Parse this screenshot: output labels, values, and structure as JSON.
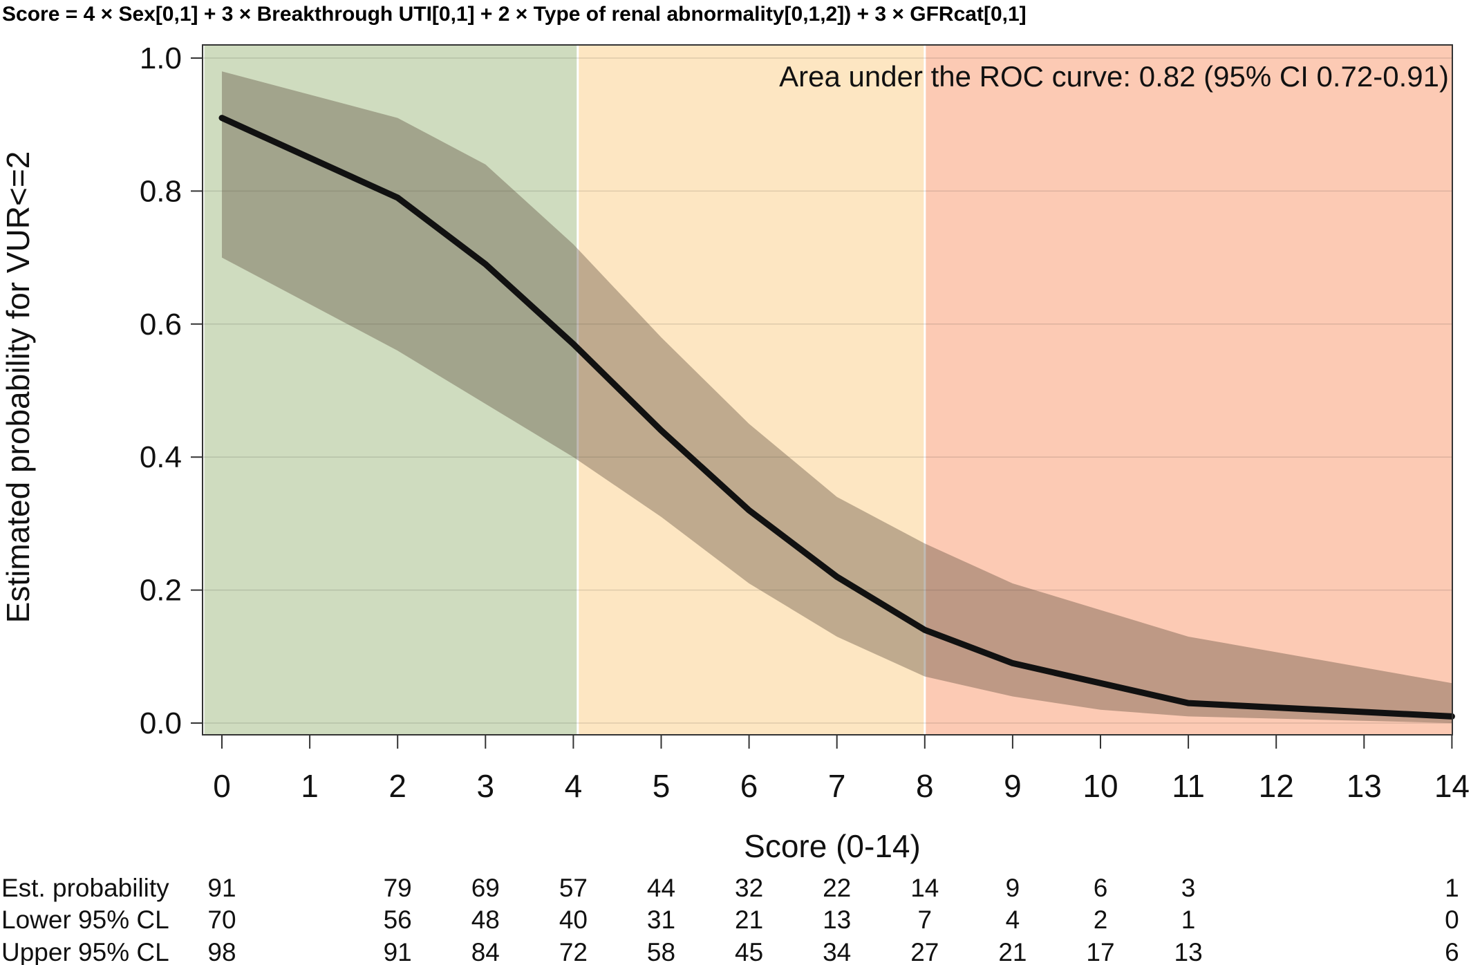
{
  "formula": "Score = 4 × Sex[0,1] + 3 × Breakthrough UTI[0,1] + 2 × Type of renal abnormality[0,1,2]) + 3 × GFRcat[0,1]",
  "annotation": "Area under the ROC curve: 0.82 (95% CI 0.72-0.91)",
  "colors": {
    "zone_low": "#cfdcbf",
    "zone_mid": "#fde6c2",
    "zone_high": "#fccab4",
    "ci_band": "#5a4a3a",
    "line": "#111111"
  },
  "chart_data": {
    "type": "line",
    "title": "",
    "xlabel": "Score (0-14)",
    "ylabel": "Estimated probability for VUR<=2",
    "xlim": [
      -0.2,
      14.2
    ],
    "ylim": [
      0,
      1
    ],
    "x_ticks": [
      0,
      1,
      2,
      3,
      4,
      5,
      6,
      7,
      8,
      9,
      10,
      11,
      12,
      13,
      14
    ],
    "x_tick_labels": [
      "0",
      "1",
      "2",
      "3",
      "4",
      "5",
      "6",
      "7",
      "8",
      "9",
      "10",
      "11",
      "12",
      "13",
      "14"
    ],
    "y_ticks": [
      0,
      0.2,
      0.4,
      0.6,
      0.8,
      1.0
    ],
    "y_tick_labels": [
      "0.0",
      "0.2",
      "0.4",
      "0.6",
      "0.8",
      "1.0"
    ],
    "grid": true,
    "zones": [
      {
        "from": -0.2,
        "to": 4.05,
        "color": "#cfdcbf"
      },
      {
        "from": 4.05,
        "to": 8,
        "color": "#fde6c2"
      },
      {
        "from": 8,
        "to": 14.2,
        "color": "#fccab4"
      }
    ],
    "x": [
      0,
      2,
      3,
      4,
      5,
      6,
      7,
      8,
      9,
      10,
      11,
      14
    ],
    "series": [
      {
        "values": [
          0.91,
          0.79,
          0.69,
          0.57,
          0.44,
          0.32,
          0.22,
          0.14,
          0.09,
          0.06,
          0.03,
          0.01
        ]
      }
    ],
    "band": {
      "lower": [
        0.7,
        0.56,
        0.48,
        0.4,
        0.31,
        0.21,
        0.13,
        0.07,
        0.04,
        0.02,
        0.01,
        0.0
      ],
      "upper": [
        0.98,
        0.91,
        0.84,
        0.72,
        0.58,
        0.45,
        0.34,
        0.27,
        0.21,
        0.17,
        0.13,
        0.06
      ]
    },
    "table": {
      "rows": [
        {
          "label": "Est. probability",
          "values": [
            "91",
            "79",
            "69",
            "57",
            "44",
            "32",
            "22",
            "14",
            "9",
            "6",
            "3",
            "1"
          ]
        },
        {
          "label": "Lower 95% CL",
          "values": [
            "70",
            "56",
            "48",
            "40",
            "31",
            "21",
            "13",
            "7",
            "4",
            "2",
            "1",
            "0"
          ]
        },
        {
          "label": "Upper 95% CL",
          "values": [
            "98",
            "91",
            "84",
            "72",
            "58",
            "45",
            "34",
            "27",
            "21",
            "17",
            "13",
            "6"
          ]
        }
      ]
    }
  }
}
